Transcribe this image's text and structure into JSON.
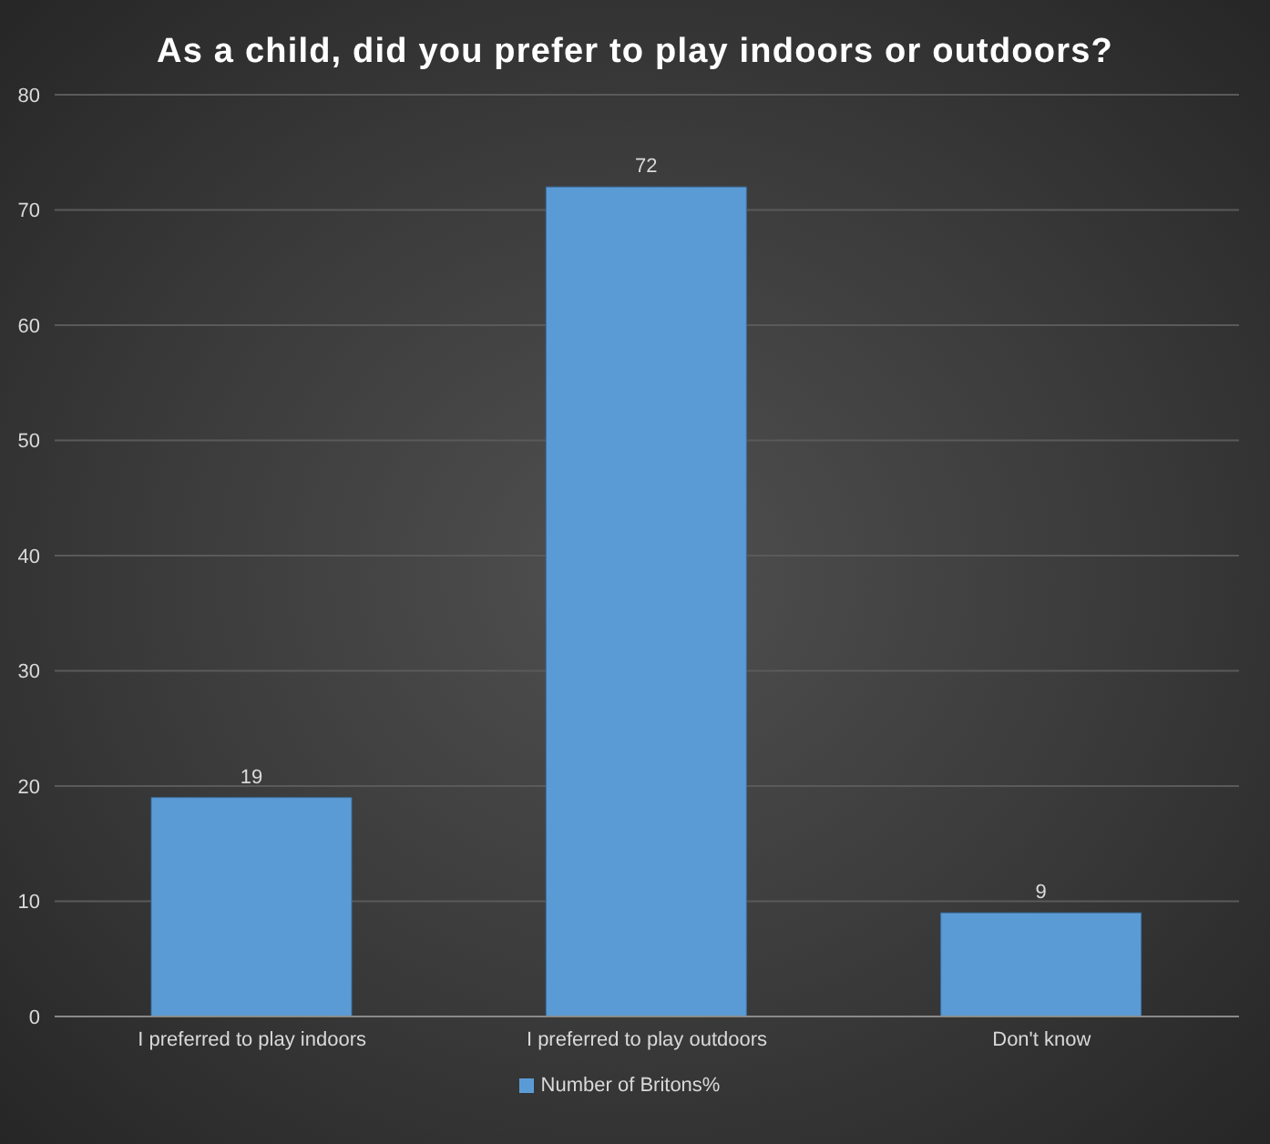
{
  "chart_data": {
    "type": "bar",
    "title": "As a child, did you prefer to play indoors or outdoors?",
    "categories": [
      "I preferred to play indoors",
      "I preferred to play outdoors",
      "Don't know"
    ],
    "series": [
      {
        "name": "Number of Britons%",
        "color": "#5b9bd5",
        "values": [
          19,
          72,
          9
        ]
      }
    ],
    "ylim": [
      0,
      80
    ],
    "yticks": [
      0,
      10,
      20,
      30,
      40,
      50,
      60,
      70,
      80
    ],
    "grid": "y",
    "legend": "bottom",
    "data_labels": true
  }
}
